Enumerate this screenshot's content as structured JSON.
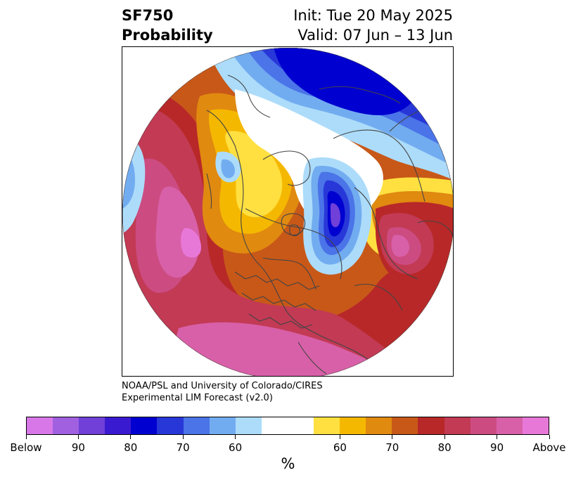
{
  "title": {
    "variable": "SF750",
    "metric": "Probability",
    "init": "Init: Tue 20 May 2025",
    "valid": "Valid: 07 Jun – 13 Jun"
  },
  "credit": {
    "line1": "NOAA/PSL and University of Colorado/CIRES",
    "line2": "Experimental LIM Forecast (v2.0)"
  },
  "map": {
    "projection": "north-polar-stereographic",
    "field": "SF750 probability",
    "feature_colors": {
      "land_border": "#444444",
      "outside_disk": "#ffffff"
    }
  },
  "colorbar": {
    "unit": "%",
    "swatches": [
      "#d878e8",
      "#a060e0",
      "#7040d8",
      "#3a1ad0",
      "#0000d0",
      "#2838d8",
      "#4a74e8",
      "#72acf0",
      "#acdcfa",
      "#ffffff",
      "#ffffff",
      "#ffe040",
      "#f5b800",
      "#e08a10",
      "#c85818",
      "#b82828",
      "#c23a54",
      "#cc4c82",
      "#d860a8",
      "#e878d8"
    ],
    "tick_labels": [
      "Below",
      "90",
      "80",
      "70",
      "60",
      "60",
      "70",
      "80",
      "90",
      "Above"
    ]
  }
}
